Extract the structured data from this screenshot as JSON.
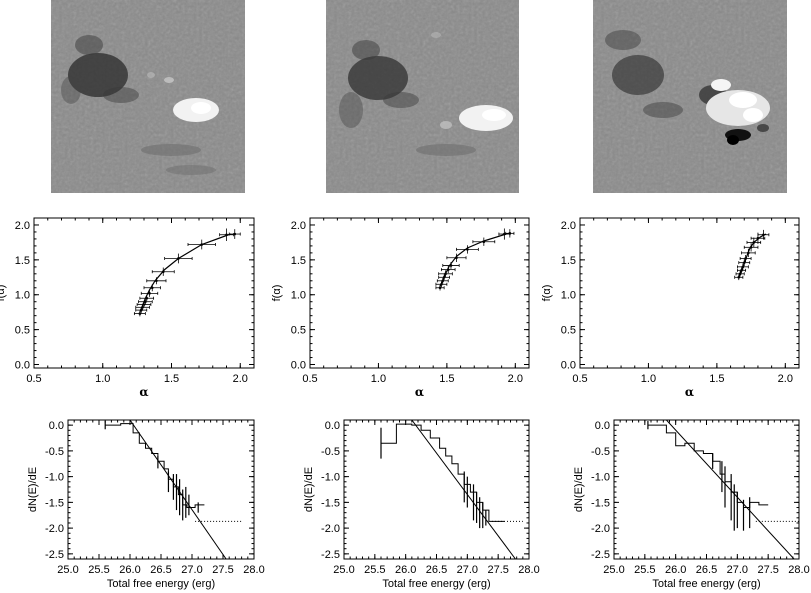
{
  "chart_data": [
    {
      "type": "image",
      "panel": "magnetogram-1",
      "features": [
        "dark negative-polarity network region",
        "bright positive-polarity sunspot"
      ]
    },
    {
      "type": "image",
      "panel": "magnetogram-2",
      "features": [
        "dark negative-polarity network region",
        "bright positive-polarity sunspot"
      ]
    },
    {
      "type": "image",
      "panel": "magnetogram-3",
      "features": [
        "dark negative-polarity network region",
        "bright mixed-polarity emerging flux region"
      ]
    },
    {
      "type": "scatter",
      "panel": "multifractal-spectrum-1",
      "xlabel": "α",
      "ylabel": "f(α)",
      "xlim": [
        0.5,
        2.1
      ],
      "ylim": [
        -0.05,
        2.1
      ],
      "xticks": [
        "0.5",
        "1.0",
        "1.5",
        "2.0"
      ],
      "yticks": [
        "0.0",
        "0.5",
        "1.0",
        "1.5",
        "2.0"
      ],
      "curve": [
        [
          1.27,
          0.75
        ],
        [
          1.29,
          0.85
        ],
        [
          1.31,
          0.95
        ],
        [
          1.34,
          1.07
        ],
        [
          1.38,
          1.2
        ],
        [
          1.45,
          1.36
        ],
        [
          1.55,
          1.52
        ],
        [
          1.72,
          1.72
        ],
        [
          1.93,
          1.87
        ]
      ],
      "points": [
        {
          "x": 1.27,
          "y": 0.73,
          "xerr": 0.04,
          "yerr": 0.04
        },
        {
          "x": 1.28,
          "y": 0.78,
          "xerr": 0.04,
          "yerr": 0.04
        },
        {
          "x": 1.29,
          "y": 0.82,
          "xerr": 0.05,
          "yerr": 0.04
        },
        {
          "x": 1.3,
          "y": 0.86,
          "xerr": 0.05,
          "yerr": 0.04
        },
        {
          "x": 1.31,
          "y": 0.9,
          "xerr": 0.05,
          "yerr": 0.04
        },
        {
          "x": 1.32,
          "y": 0.95,
          "xerr": 0.05,
          "yerr": 0.04
        },
        {
          "x": 1.34,
          "y": 1.02,
          "xerr": 0.06,
          "yerr": 0.05
        },
        {
          "x": 1.36,
          "y": 1.1,
          "xerr": 0.06,
          "yerr": 0.05
        },
        {
          "x": 1.39,
          "y": 1.2,
          "xerr": 0.07,
          "yerr": 0.05
        },
        {
          "x": 1.44,
          "y": 1.33,
          "xerr": 0.08,
          "yerr": 0.06
        },
        {
          "x": 1.55,
          "y": 1.52,
          "xerr": 0.1,
          "yerr": 0.07
        },
        {
          "x": 1.72,
          "y": 1.72,
          "xerr": 0.1,
          "yerr": 0.07
        },
        {
          "x": 1.9,
          "y": 1.86,
          "xerr": 0.05,
          "yerr": 0.09
        },
        {
          "x": 1.96,
          "y": 1.87,
          "xerr": 0.04,
          "yerr": 0.07
        }
      ]
    },
    {
      "type": "scatter",
      "panel": "multifractal-spectrum-2",
      "xlabel": "α",
      "ylabel": "f(α)",
      "xlim": [
        0.5,
        2.1
      ],
      "ylim": [
        -0.05,
        2.1
      ],
      "xticks": [
        "0.5",
        "1.0",
        "1.5",
        "2.0"
      ],
      "yticks": [
        "0.0",
        "0.5",
        "1.0",
        "1.5",
        "2.0"
      ],
      "curve": [
        [
          1.45,
          1.12
        ],
        [
          1.47,
          1.2
        ],
        [
          1.49,
          1.3
        ],
        [
          1.52,
          1.42
        ],
        [
          1.57,
          1.55
        ],
        [
          1.65,
          1.67
        ],
        [
          1.77,
          1.77
        ],
        [
          1.95,
          1.88
        ]
      ],
      "points": [
        {
          "x": 1.45,
          "y": 1.1,
          "xerr": 0.03,
          "yerr": 0.04
        },
        {
          "x": 1.46,
          "y": 1.15,
          "xerr": 0.04,
          "yerr": 0.04
        },
        {
          "x": 1.47,
          "y": 1.2,
          "xerr": 0.04,
          "yerr": 0.04
        },
        {
          "x": 1.48,
          "y": 1.25,
          "xerr": 0.04,
          "yerr": 0.04
        },
        {
          "x": 1.49,
          "y": 1.3,
          "xerr": 0.05,
          "yerr": 0.05
        },
        {
          "x": 1.51,
          "y": 1.36,
          "xerr": 0.05,
          "yerr": 0.05
        },
        {
          "x": 1.53,
          "y": 1.42,
          "xerr": 0.06,
          "yerr": 0.05
        },
        {
          "x": 1.57,
          "y": 1.53,
          "xerr": 0.07,
          "yerr": 0.06
        },
        {
          "x": 1.65,
          "y": 1.65,
          "xerr": 0.08,
          "yerr": 0.06
        },
        {
          "x": 1.77,
          "y": 1.76,
          "xerr": 0.08,
          "yerr": 0.06
        },
        {
          "x": 1.92,
          "y": 1.87,
          "xerr": 0.04,
          "yerr": 0.08
        },
        {
          "x": 1.96,
          "y": 1.88,
          "xerr": 0.03,
          "yerr": 0.06
        }
      ]
    },
    {
      "type": "scatter",
      "panel": "multifractal-spectrum-3",
      "xlabel": "α",
      "ylabel": "f(α)",
      "xlim": [
        0.5,
        2.1
      ],
      "ylim": [
        -0.05,
        2.1
      ],
      "xticks": [
        "0.5",
        "1.0",
        "1.5",
        "2.0"
      ],
      "yticks": [
        "0.0",
        "0.5",
        "1.0",
        "1.5",
        "2.0"
      ],
      "curve": [
        [
          1.66,
          1.25
        ],
        [
          1.68,
          1.35
        ],
        [
          1.7,
          1.45
        ],
        [
          1.72,
          1.56
        ],
        [
          1.74,
          1.66
        ],
        [
          1.77,
          1.75
        ],
        [
          1.82,
          1.83
        ],
        [
          1.86,
          1.87
        ]
      ],
      "points": [
        {
          "x": 1.66,
          "y": 1.25,
          "xerr": 0.03,
          "yerr": 0.04
        },
        {
          "x": 1.67,
          "y": 1.3,
          "xerr": 0.03,
          "yerr": 0.04
        },
        {
          "x": 1.68,
          "y": 1.35,
          "xerr": 0.03,
          "yerr": 0.04
        },
        {
          "x": 1.69,
          "y": 1.4,
          "xerr": 0.04,
          "yerr": 0.05
        },
        {
          "x": 1.7,
          "y": 1.46,
          "xerr": 0.04,
          "yerr": 0.05
        },
        {
          "x": 1.71,
          "y": 1.52,
          "xerr": 0.04,
          "yerr": 0.05
        },
        {
          "x": 1.73,
          "y": 1.6,
          "xerr": 0.05,
          "yerr": 0.06
        },
        {
          "x": 1.75,
          "y": 1.68,
          "xerr": 0.05,
          "yerr": 0.06
        },
        {
          "x": 1.77,
          "y": 1.75,
          "xerr": 0.05,
          "yerr": 0.07
        },
        {
          "x": 1.8,
          "y": 1.81,
          "xerr": 0.05,
          "yerr": 0.08
        },
        {
          "x": 1.84,
          "y": 1.86,
          "xerr": 0.04,
          "yerr": 0.07
        }
      ]
    },
    {
      "type": "line",
      "panel": "energy-distribution-1",
      "xlabel": "Total free energy (erg)",
      "ylabel": "dN(E)/dE",
      "xlim": [
        25.0,
        28.0
      ],
      "ylim": [
        -2.6,
        0.1
      ],
      "xticks": [
        "25.0",
        "25.5",
        "26.0",
        "26.5",
        "27.0",
        "27.5",
        "28.0"
      ],
      "yticks": [
        "0.0",
        "-0.5",
        "-1.0",
        "-1.5",
        "-2.0",
        "-2.5"
      ],
      "fit_line": [
        [
          26.0,
          0.1
        ],
        [
          27.55,
          -2.6
        ]
      ],
      "step": [
        [
          25.6,
          0.0
        ],
        [
          25.85,
          0.03
        ],
        [
          26.05,
          -0.15
        ],
        [
          26.15,
          -0.35
        ],
        [
          26.25,
          -0.45
        ],
        [
          26.35,
          -0.55
        ],
        [
          26.45,
          -0.7
        ],
        [
          26.55,
          -0.85
        ],
        [
          26.62,
          -1.05
        ],
        [
          26.7,
          -1.2
        ],
        [
          26.78,
          -1.35
        ],
        [
          26.85,
          -1.55
        ],
        [
          26.92,
          -1.6
        ],
        [
          27.05,
          -1.55
        ],
        [
          27.2,
          -1.55
        ]
      ],
      "errbars": [
        [
          25.6,
          0.0,
          0.08
        ],
        [
          26.45,
          -0.72,
          0.12
        ],
        [
          26.62,
          -1.1,
          0.2
        ],
        [
          26.7,
          -1.2,
          0.25
        ],
        [
          26.75,
          -1.3,
          0.35
        ],
        [
          26.8,
          -1.4,
          0.35
        ],
        [
          26.85,
          -1.55,
          0.3
        ],
        [
          26.9,
          -1.5,
          0.3
        ],
        [
          26.95,
          -1.55,
          0.2
        ],
        [
          27.1,
          -1.6,
          0.1
        ]
      ],
      "dotted": [
        [
          27.05,
          -1.87
        ],
        [
          27.8,
          -1.87
        ]
      ]
    },
    {
      "type": "line",
      "panel": "energy-distribution-2",
      "xlabel": "Total free energy (erg)",
      "ylabel": "dN(E)/dE",
      "xlim": [
        25.0,
        28.0
      ],
      "ylim": [
        -2.6,
        0.1
      ],
      "xticks": [
        "25.0",
        "25.5",
        "26.0",
        "26.5",
        "27.0",
        "27.5",
        "28.0"
      ],
      "yticks": [
        "0.0",
        "-0.5",
        "-1.0",
        "-1.5",
        "-2.0",
        "-2.5"
      ],
      "fit_line": [
        [
          26.1,
          0.1
        ],
        [
          27.78,
          -2.6
        ]
      ],
      "step": [
        [
          25.6,
          -0.35
        ],
        [
          25.85,
          0.02
        ],
        [
          26.1,
          0.0
        ],
        [
          26.25,
          -0.1
        ],
        [
          26.4,
          -0.25
        ],
        [
          26.55,
          -0.45
        ],
        [
          26.65,
          -0.6
        ],
        [
          26.75,
          -0.75
        ],
        [
          26.85,
          -0.95
        ],
        [
          26.95,
          -1.15
        ],
        [
          27.05,
          -1.3
        ],
        [
          27.15,
          -1.5
        ],
        [
          27.25,
          -1.65
        ],
        [
          27.35,
          -1.87
        ],
        [
          27.6,
          -1.87
        ]
      ],
      "errbars": [
        [
          25.6,
          -0.35,
          0.3
        ],
        [
          26.95,
          -1.2,
          0.3
        ],
        [
          27.0,
          -1.3,
          0.3
        ],
        [
          27.1,
          -1.5,
          0.35
        ],
        [
          27.15,
          -1.6,
          0.3
        ],
        [
          27.2,
          -1.7,
          0.3
        ],
        [
          27.25,
          -1.75,
          0.25
        ],
        [
          27.3,
          -1.8,
          0.15
        ]
      ],
      "dotted": [
        [
          27.4,
          -1.87
        ],
        [
          27.9,
          -1.87
        ]
      ]
    },
    {
      "type": "line",
      "panel": "energy-distribution-3",
      "xlabel": "Total free energy (erg)",
      "ylabel": "dN(E)/dE",
      "xlim": [
        25.0,
        28.0
      ],
      "ylim": [
        -2.6,
        0.1
      ],
      "xticks": [
        "25.0",
        "25.5",
        "26.0",
        "26.5",
        "27.0",
        "27.5",
        "28.0"
      ],
      "yticks": [
        "0.0",
        "-0.5",
        "-1.0",
        "-1.5",
        "-2.0",
        "-2.5"
      ],
      "fit_line": [
        [
          25.85,
          0.1
        ],
        [
          27.92,
          -2.6
        ]
      ],
      "step": [
        [
          25.55,
          0.0
        ],
        [
          25.85,
          -0.15
        ],
        [
          26.0,
          -0.4
        ],
        [
          26.15,
          -0.35
        ],
        [
          26.3,
          -0.5
        ],
        [
          26.45,
          -0.55
        ],
        [
          26.6,
          -0.7
        ],
        [
          26.72,
          -0.95
        ],
        [
          26.8,
          -1.1
        ],
        [
          26.9,
          -1.3
        ],
        [
          27.0,
          -1.5
        ],
        [
          27.1,
          -1.6
        ],
        [
          27.2,
          -1.5
        ],
        [
          27.35,
          -1.55
        ],
        [
          27.5,
          -1.55
        ]
      ],
      "errbars": [
        [
          25.55,
          0.0,
          0.08
        ],
        [
          26.6,
          -0.7,
          0.15
        ],
        [
          26.75,
          -1.0,
          0.3
        ],
        [
          26.8,
          -1.2,
          0.4
        ],
        [
          26.9,
          -1.4,
          0.45
        ],
        [
          26.95,
          -1.6,
          0.45
        ],
        [
          27.0,
          -1.65,
          0.35
        ],
        [
          27.1,
          -1.75,
          0.3
        ],
        [
          27.2,
          -1.7,
          0.3
        ]
      ],
      "dotted": [
        [
          27.3,
          -1.87
        ],
        [
          28.0,
          -1.87
        ]
      ]
    }
  ]
}
